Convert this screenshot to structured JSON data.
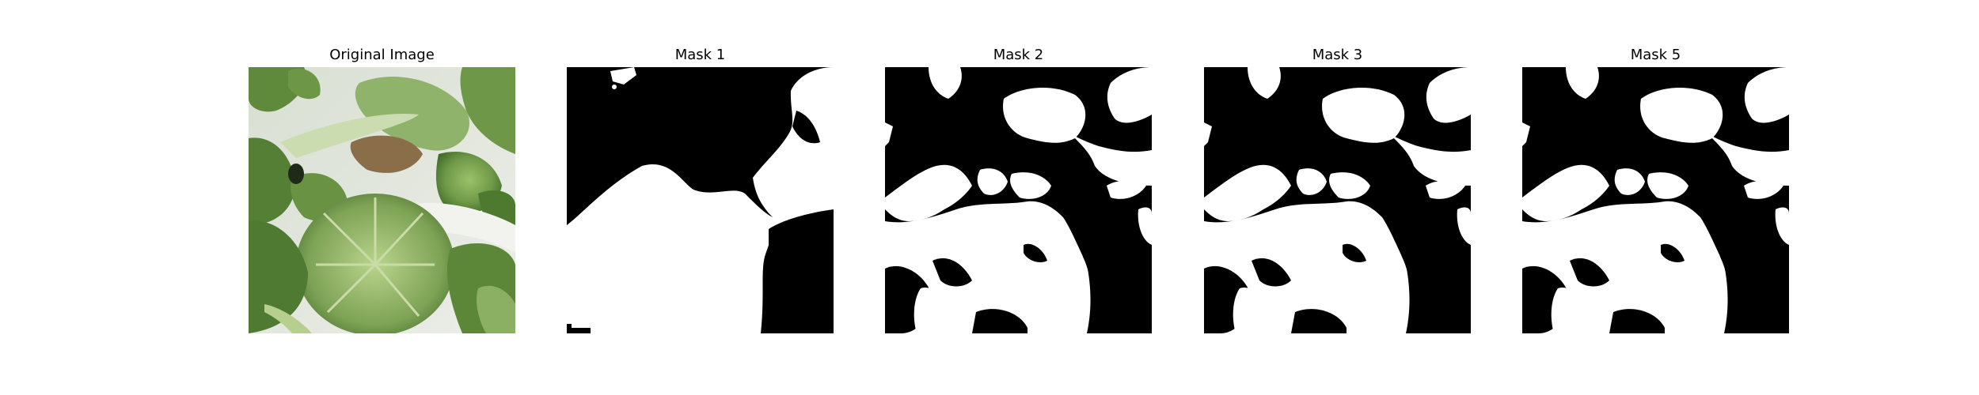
{
  "figure": {
    "panels": [
      {
        "title": "Original Image",
        "kind": "photo"
      },
      {
        "title": "Mask 1",
        "kind": "mask"
      },
      {
        "title": "Mask 2",
        "kind": "mask"
      },
      {
        "title": "Mask 3",
        "kind": "mask"
      },
      {
        "title": "Mask 5",
        "kind": "mask"
      }
    ]
  },
  "colors": {
    "background": "#ffffff",
    "mask_foreground": "#ffffff",
    "mask_background": "#000000",
    "leaf_dark": "#3f6a2a",
    "leaf_mid": "#6f9a48",
    "leaf_light": "#a9c77a"
  }
}
